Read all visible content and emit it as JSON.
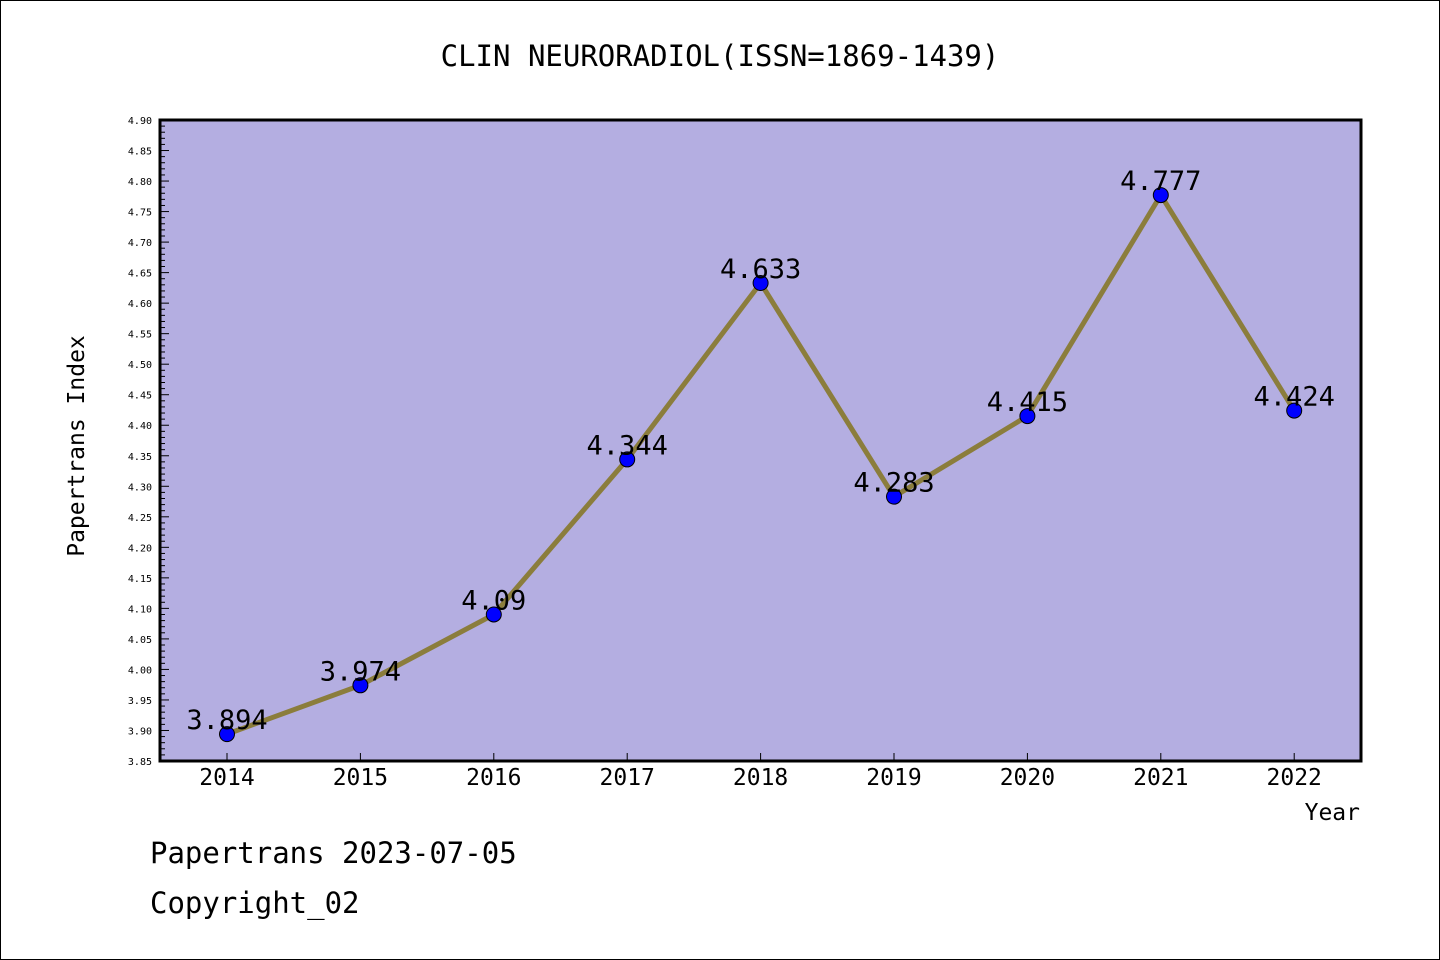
{
  "chart_data": {
    "type": "line",
    "title": "CLIN NEURORADIOL(ISSN=1869-1439)",
    "xlabel": "Year",
    "ylabel": "Papertrans Index",
    "ylim": [
      3.85,
      4.9
    ],
    "y_ticks": [
      "3.85",
      "3.90",
      "3.95",
      "4.00",
      "4.05",
      "4.10",
      "4.15",
      "4.20",
      "4.25",
      "4.30",
      "4.35",
      "4.40",
      "4.45",
      "4.50",
      "4.55",
      "4.60",
      "4.65",
      "4.70",
      "4.75",
      "4.80",
      "4.85",
      "4.90"
    ],
    "categories": [
      "2014",
      "2015",
      "2016",
      "2017",
      "2018",
      "2019",
      "2020",
      "2021",
      "2022"
    ],
    "values": [
      3.894,
      3.974,
      4.09,
      4.344,
      4.633,
      4.283,
      4.415,
      4.777,
      4.424
    ],
    "data_labels": [
      "3.894",
      "3.974",
      "4.09",
      "4.344",
      "4.633",
      "4.283",
      "4.415",
      "4.777",
      "4.424"
    ],
    "grid": false,
    "legend": "none",
    "colors": {
      "plot_background": "#b4aee1",
      "line": "#8b7d3c",
      "marker": "#0000ff"
    }
  },
  "footer": {
    "line1": "Papertrans 2023-07-05",
    "line2": "Copyright_02"
  }
}
